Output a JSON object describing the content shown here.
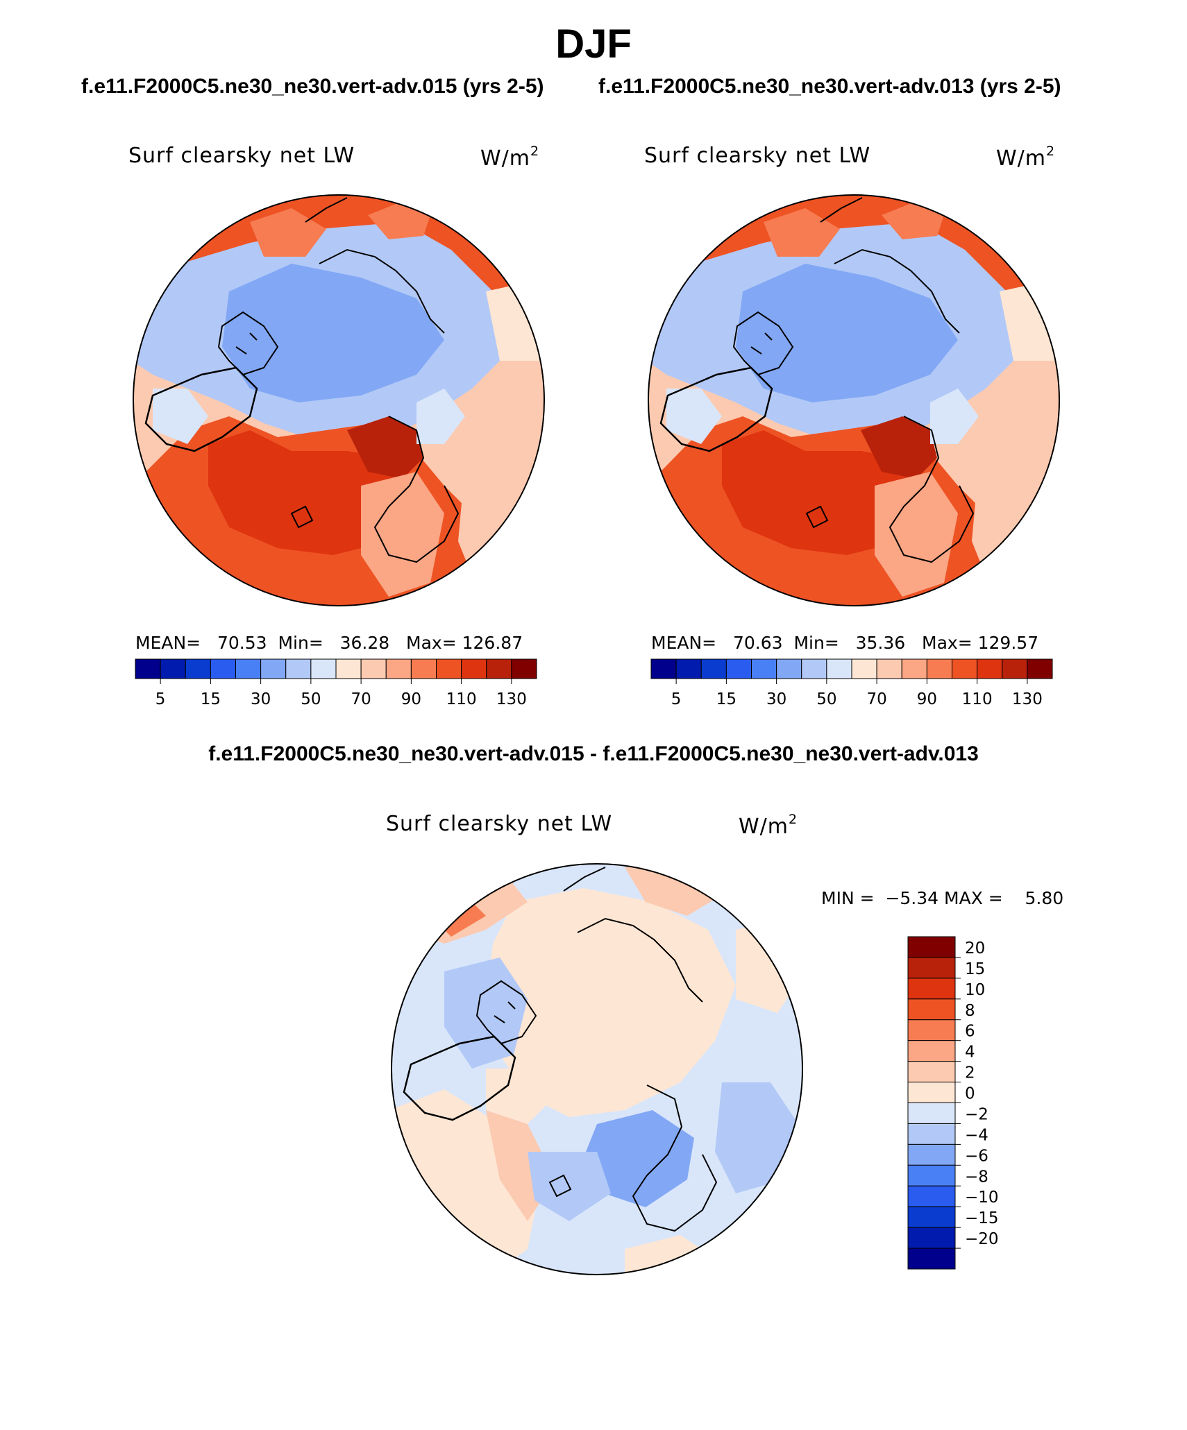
{
  "figure": {
    "season": "DJF",
    "case_left": "f.e11.F2000C5.ne30_ne30.vert-adv.015 (yrs 2-5)",
    "case_right": "f.e11.F2000C5.ne30_ne30.vert-adv.013 (yrs 2-5)",
    "diff_title": "f.e11.F2000C5.ne30_ne30.vert-adv.015 - f.e11.F2000C5.ne30_ne30.vert-adv.013"
  },
  "panels": {
    "left": {
      "title": "Surf clearsky net LW",
      "units": "W/m",
      "units_exp": "2",
      "mean_label": "MEAN=",
      "mean": "70.53",
      "min_label": "Min=",
      "min": "36.28",
      "max_label": "Max=",
      "max": "126.87"
    },
    "right": {
      "title": "Surf clearsky net LW",
      "units": "W/m",
      "units_exp": "2",
      "mean_label": "MEAN=",
      "mean": "70.63",
      "min_label": "Min=",
      "min": "35.36",
      "max_label": "Max=",
      "max": "129.57"
    },
    "diff": {
      "title": "Surf clearsky net LW",
      "units": "W/m",
      "units_exp": "2",
      "min_label": "MIN =",
      "min": "−5.34",
      "max_label": "MAX =",
      "max": "5.80"
    }
  },
  "colorbars": {
    "abs": {
      "colors": [
        "#00008c",
        "#001bae",
        "#0a3ccf",
        "#2a5cf0",
        "#4a80f5",
        "#82a8f5",
        "#b2c9f7",
        "#d9e6fa",
        "#fde6d4",
        "#fccab0",
        "#fba684",
        "#f77c52",
        "#ee5324",
        "#df3410",
        "#b9220a",
        "#800000"
      ],
      "labels": [
        "5",
        "15",
        "30",
        "50",
        "70",
        "90",
        "110",
        "130"
      ]
    },
    "diff": {
      "colors_top_to_bottom": [
        "#800000",
        "#b9220a",
        "#df3410",
        "#ee5324",
        "#f77c52",
        "#fba684",
        "#fccab0",
        "#fde6d4",
        "#d9e6fa",
        "#b2c9f7",
        "#82a8f5",
        "#4a80f5",
        "#2a5cf0",
        "#0a3ccf",
        "#001bae",
        "#00008c"
      ],
      "labels": [
        "20",
        "15",
        "10",
        "8",
        "6",
        "4",
        "2",
        "0",
        "−2",
        "−4",
        "−6",
        "−8",
        "−10",
        "−15",
        "−20"
      ]
    }
  }
}
